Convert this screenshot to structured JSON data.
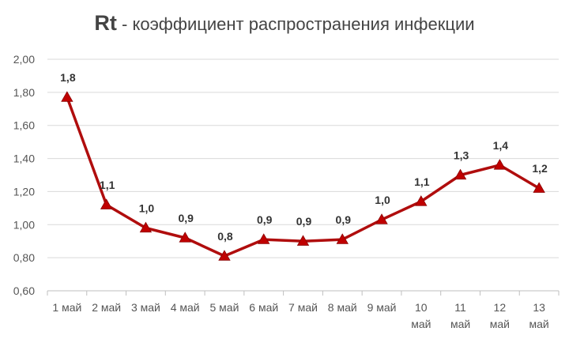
{
  "chart_data": {
    "type": "line",
    "title_bold": "Rt",
    "title_rest": " - коэффициент распространения инфекции",
    "categories": [
      [
        "1 май"
      ],
      [
        "2 май"
      ],
      [
        "3 май"
      ],
      [
        "4 май"
      ],
      [
        "5 май"
      ],
      [
        "6 май"
      ],
      [
        "7 май"
      ],
      [
        "8 май"
      ],
      [
        "9 май"
      ],
      [
        "10",
        "май"
      ],
      [
        "11",
        "май"
      ],
      [
        "12",
        "май"
      ],
      [
        "13",
        "май"
      ]
    ],
    "values": [
      1.77,
      1.12,
      0.98,
      0.92,
      0.81,
      0.91,
      0.9,
      0.91,
      1.03,
      1.14,
      1.3,
      1.36,
      1.22
    ],
    "data_labels": [
      "1,8",
      "1,1",
      "1,0",
      "0,9",
      "0,8",
      "0,9",
      "0,9",
      "0,9",
      "1,0",
      "1,1",
      "1,3",
      "1,4",
      "1,2"
    ],
    "yticks": [
      "0,60",
      "0,80",
      "1,00",
      "1,20",
      "1,40",
      "1,60",
      "1,80",
      "2,00"
    ],
    "ylim": [
      0.6,
      2.0
    ],
    "xlabel": "",
    "ylabel": "",
    "grid": "horizontal",
    "legend": "none",
    "colors": {
      "line": "#b00d0d",
      "marker": "#c00000",
      "grid": "#d9d9d9",
      "axis": "#bfbfbf"
    }
  }
}
